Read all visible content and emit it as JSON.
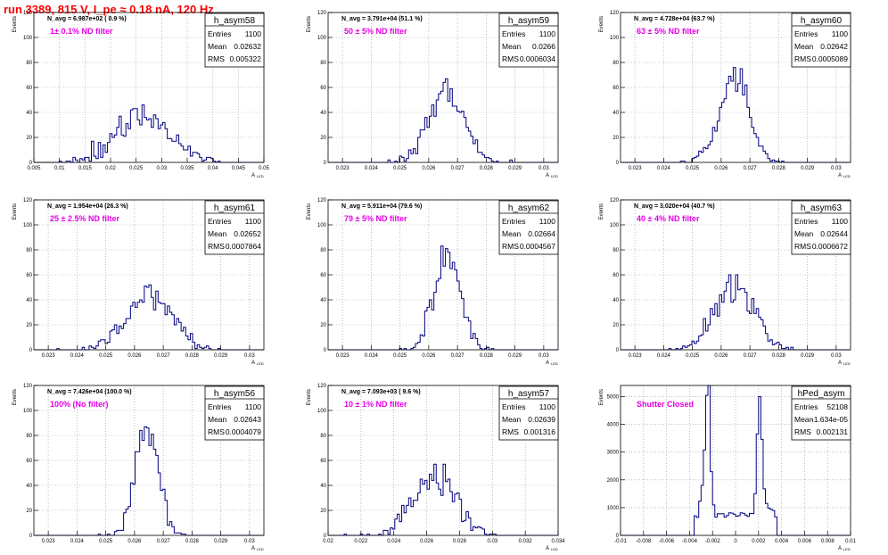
{
  "run_title": "run 3389,   815 V, I_pe ≈ 0.18 nA, 120 Hz",
  "colors": {
    "line": "#00007f",
    "grid": "#9a9a9a",
    "magenta": "#e600e6",
    "red": "#ff0000",
    "text": "#000000"
  },
  "ylabel": "Events",
  "xlabel": "A",
  "xlabel_sub": "LED",
  "stats_labels": {
    "entries": "Entries",
    "mean": "Mean",
    "rms": "RMS"
  },
  "chart_data": [
    {
      "type": "histogram",
      "name": "h_asym58",
      "navg": "N_avg = 6.987e+02 ( 0.9 %)",
      "filter": "1± 0.1% ND filter",
      "entries": "1100",
      "mean": "0.02632",
      "rms": "0.005322",
      "xlim": [
        0.005,
        0.05
      ],
      "ylim": [
        0,
        120
      ],
      "xticks": [
        0.005,
        0.01,
        0.015,
        0.02,
        0.025,
        0.03,
        0.035,
        0.04,
        0.045,
        0.05
      ],
      "xtick_labels": [
        "0.005",
        "0.01",
        "0.015",
        "0.02",
        "0.025",
        "0.03",
        "0.035",
        "0.04",
        "0.045",
        "0.05"
      ],
      "yticks": [
        0,
        20,
        40,
        60,
        80,
        100,
        120
      ],
      "ytick_labels": [
        "0",
        "20",
        "40",
        "60",
        "80",
        "100",
        "120"
      ],
      "dist": {
        "kind": "gauss",
        "mu": 0.02632,
        "sigma": 0.005322,
        "n": 1100,
        "bins": 100,
        "seed": 58
      }
    },
    {
      "type": "histogram",
      "name": "h_asym59",
      "navg": "N_avg = 3.791e+04 (51.1 %)",
      "filter": "50 ± 5% ND filter",
      "entries": "1100",
      "mean": "0.0266",
      "rms": "0.0006034",
      "xlim": [
        0.0225,
        0.0305
      ],
      "ylim": [
        0,
        120
      ],
      "xticks": [
        0.023,
        0.024,
        0.025,
        0.026,
        0.027,
        0.028,
        0.029,
        0.03
      ],
      "xtick_labels": [
        "0.023",
        "0.024",
        "0.025",
        "0.026",
        "0.027",
        "0.028",
        "0.029",
        "0.03"
      ],
      "yticks": [
        0,
        20,
        40,
        60,
        80,
        100,
        120
      ],
      "ytick_labels": [
        "0",
        "20",
        "40",
        "60",
        "80",
        "100",
        "120"
      ],
      "dist": {
        "kind": "gauss",
        "mu": 0.0266,
        "sigma": 0.0006034,
        "n": 1100,
        "bins": 100,
        "seed": 59
      }
    },
    {
      "type": "histogram",
      "name": "h_asym60",
      "navg": "N_avg = 4.728e+04 (63.7 %)",
      "filter": "63 ± 5% ND filter",
      "entries": "1100",
      "mean": "0.02642",
      "rms": "0.0005089",
      "xlim": [
        0.0225,
        0.0305
      ],
      "ylim": [
        0,
        120
      ],
      "xticks": [
        0.023,
        0.024,
        0.025,
        0.026,
        0.027,
        0.028,
        0.029,
        0.03
      ],
      "xtick_labels": [
        "0.023",
        "0.024",
        "0.025",
        "0.026",
        "0.027",
        "0.028",
        "0.029",
        "0.03"
      ],
      "yticks": [
        0,
        20,
        40,
        60,
        80,
        100,
        120
      ],
      "ytick_labels": [
        "0",
        "20",
        "40",
        "60",
        "80",
        "100",
        "120"
      ],
      "dist": {
        "kind": "gauss",
        "mu": 0.02642,
        "sigma": 0.0005089,
        "n": 1100,
        "bins": 100,
        "seed": 60
      }
    },
    {
      "type": "histogram",
      "name": "h_asym61",
      "navg": "N_avg = 1.954e+04 (26.3 %)",
      "filter": "25 ± 2.5% ND filter",
      "entries": "1100",
      "mean": "0.02652",
      "rms": "0.0007864",
      "xlim": [
        0.0225,
        0.0305
      ],
      "ylim": [
        0,
        120
      ],
      "xticks": [
        0.023,
        0.024,
        0.025,
        0.026,
        0.027,
        0.028,
        0.029,
        0.03
      ],
      "xtick_labels": [
        "0.023",
        "0.024",
        "0.025",
        "0.026",
        "0.027",
        "0.028",
        "0.029",
        "0.03"
      ],
      "yticks": [
        0,
        20,
        40,
        60,
        80,
        100,
        120
      ],
      "ytick_labels": [
        "0",
        "20",
        "40",
        "60",
        "80",
        "100",
        "120"
      ],
      "dist": {
        "kind": "gauss",
        "mu": 0.02652,
        "sigma": 0.0007864,
        "n": 1100,
        "bins": 100,
        "seed": 61
      }
    },
    {
      "type": "histogram",
      "name": "h_asym62",
      "navg": "N_avg = 5.911e+04 (79.6 %)",
      "filter": "79 ± 5% ND filter",
      "entries": "1100",
      "mean": "0.02664",
      "rms": "0.0004567",
      "xlim": [
        0.0225,
        0.0305
      ],
      "ylim": [
        0,
        120
      ],
      "xticks": [
        0.023,
        0.024,
        0.025,
        0.026,
        0.027,
        0.028,
        0.029,
        0.03
      ],
      "xtick_labels": [
        "0.023",
        "0.024",
        "0.025",
        "0.026",
        "0.027",
        "0.028",
        "0.029",
        "0.03"
      ],
      "yticks": [
        0,
        20,
        40,
        60,
        80,
        100,
        120
      ],
      "ytick_labels": [
        "0",
        "20",
        "40",
        "60",
        "80",
        "100",
        "120"
      ],
      "dist": {
        "kind": "gauss",
        "mu": 0.02664,
        "sigma": 0.0004567,
        "n": 1100,
        "bins": 100,
        "seed": 62
      }
    },
    {
      "type": "histogram",
      "name": "h_asym63",
      "navg": "N_avg = 3.020e+04 (40.7 %)",
      "filter": "40 ± 4% ND filter",
      "entries": "1100",
      "mean": "0.02644",
      "rms": "0.0006672",
      "xlim": [
        0.0225,
        0.0305
      ],
      "ylim": [
        0,
        120
      ],
      "xticks": [
        0.023,
        0.024,
        0.025,
        0.026,
        0.027,
        0.028,
        0.029,
        0.03
      ],
      "xtick_labels": [
        "0.023",
        "0.024",
        "0.025",
        "0.026",
        "0.027",
        "0.028",
        "0.029",
        "0.03"
      ],
      "yticks": [
        0,
        20,
        40,
        60,
        80,
        100,
        120
      ],
      "ytick_labels": [
        "0",
        "20",
        "40",
        "60",
        "80",
        "100",
        "120"
      ],
      "dist": {
        "kind": "gauss",
        "mu": 0.02644,
        "sigma": 0.0006672,
        "n": 1100,
        "bins": 100,
        "seed": 63
      }
    },
    {
      "type": "histogram",
      "name": "h_asym56",
      "navg": "N_avg = 7.426e+04 (100.0 %)",
      "filter": "100% (No filter)",
      "entries": "1100",
      "mean": "0.02643",
      "rms": "0.0004079",
      "xlim": [
        0.0225,
        0.0305
      ],
      "ylim": [
        0,
        120
      ],
      "xticks": [
        0.023,
        0.024,
        0.025,
        0.026,
        0.027,
        0.028,
        0.029,
        0.03
      ],
      "xtick_labels": [
        "0.023",
        "0.024",
        "0.025",
        "0.026",
        "0.027",
        "0.028",
        "0.029",
        "0.03"
      ],
      "yticks": [
        0,
        20,
        40,
        60,
        80,
        100,
        120
      ],
      "ytick_labels": [
        "0",
        "20",
        "40",
        "60",
        "80",
        "100",
        "120"
      ],
      "dist": {
        "kind": "gauss",
        "mu": 0.02643,
        "sigma": 0.0004079,
        "n": 1100,
        "bins": 100,
        "seed": 56
      }
    },
    {
      "type": "histogram",
      "name": "h_asym57",
      "navg": "N_avg = 7.093e+03 ( 9.6 %)",
      "filter": "10 ± 1% ND filter",
      "entries": "1100",
      "mean": "0.02639",
      "rms": "0.001316",
      "xlim": [
        0.02,
        0.034
      ],
      "ylim": [
        0,
        120
      ],
      "xticks": [
        0.02,
        0.022,
        0.024,
        0.026,
        0.028,
        0.03,
        0.032,
        0.034
      ],
      "xtick_labels": [
        "0.02",
        "0.022",
        "0.024",
        "0.026",
        "0.028",
        "0.03",
        "0.032",
        "0.034"
      ],
      "yticks": [
        0,
        20,
        40,
        60,
        80,
        100,
        120
      ],
      "ytick_labels": [
        "0",
        "20",
        "40",
        "60",
        "80",
        "100",
        "120"
      ],
      "dist": {
        "kind": "gauss",
        "mu": 0.02639,
        "sigma": 0.001316,
        "n": 1100,
        "bins": 100,
        "seed": 57
      }
    },
    {
      "type": "histogram",
      "name": "hPed_asym",
      "navg": "",
      "filter": "Shutter Closed",
      "entries": "52108",
      "mean": "-1.634e-05",
      "rms": "0.002131",
      "xlim": [
        -0.01,
        0.01
      ],
      "ylim": [
        0,
        5400
      ],
      "xticks": [
        -0.01,
        -0.008,
        -0.006,
        -0.004,
        -0.002,
        0,
        0.002,
        0.004,
        0.006,
        0.008,
        0.01
      ],
      "xtick_labels": [
        "-0.01",
        "-0.008",
        "-0.006",
        "-0.004",
        "-0.002",
        "0",
        "0.002",
        "0.004",
        "0.006",
        "0.008",
        "0.01"
      ],
      "yticks": [
        0,
        1000,
        2000,
        3000,
        4000,
        5000
      ],
      "ytick_labels": [
        "0",
        "1000",
        "2000",
        "3000",
        "4000",
        "5000"
      ],
      "dist": {
        "kind": "pedestal",
        "n": 52108,
        "bins": 100,
        "seed": 99
      }
    }
  ]
}
